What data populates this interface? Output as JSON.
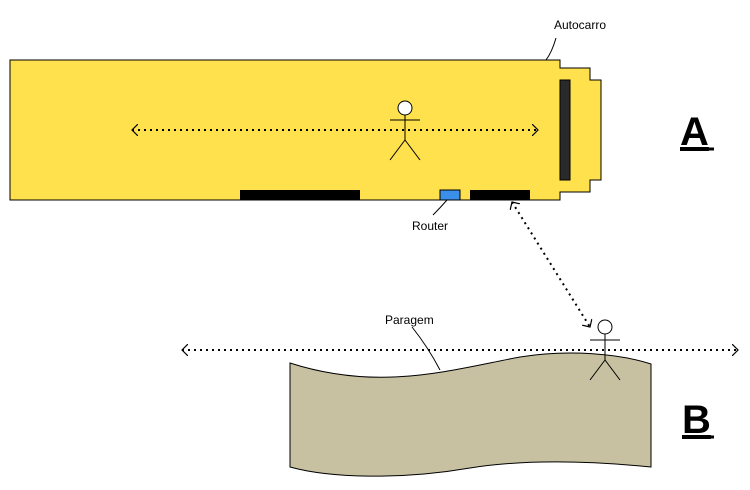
{
  "labels": {
    "bus": "Autocarro",
    "router": "Router",
    "stop": "Paragem",
    "scenario_a": "A",
    "scenario_b": "B"
  },
  "colors": {
    "bus_body": "#FFE14D",
    "stop_area": "#C7C1A2",
    "router": "#3C8FE8",
    "door": "#000000",
    "windshield": "#2A2A2A",
    "line": "#000000"
  },
  "icons": {
    "person_on_bus": "person-icon",
    "person_at_stop": "person-icon",
    "router": "router-icon"
  }
}
